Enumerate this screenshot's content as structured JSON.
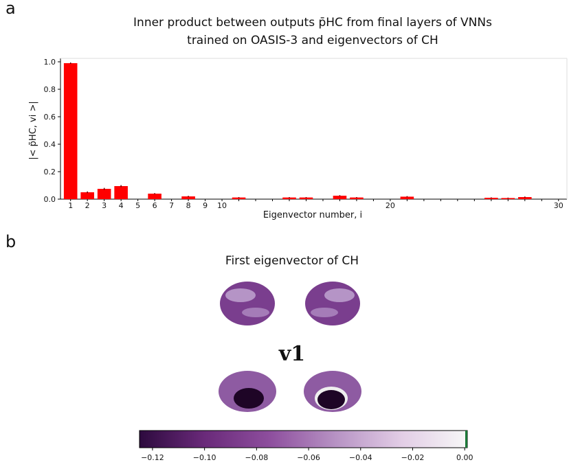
{
  "panels": [
    "a",
    "b"
  ],
  "chart_data": [
    {
      "type": "bar",
      "title": [
        "Inner product between outputs p̄HC from final layers of VNNs",
        "trained on OASIS-3 and eigenvectors of CH"
      ],
      "xlabel": "Eigenvector number, i",
      "ylabel": "|< p̄HC, vi >|",
      "x": [
        1,
        2,
        3,
        4,
        5,
        6,
        7,
        8,
        9,
        10,
        11,
        12,
        13,
        14,
        15,
        16,
        17,
        18,
        19,
        20,
        21,
        22,
        23,
        24,
        25,
        26,
        27,
        28,
        29,
        30
      ],
      "values": [
        0.99,
        0.05,
        0.075,
        0.095,
        0,
        0.04,
        0,
        0.02,
        0,
        0,
        0.012,
        0,
        0,
        0.012,
        0.012,
        0,
        0.025,
        0.012,
        0,
        0,
        0.018,
        0,
        0,
        0,
        0,
        0.01,
        0.008,
        0.015,
        0,
        0
      ],
      "errors": [
        0.005,
        0.006,
        0.007,
        0.007,
        0,
        0.004,
        0,
        0.004,
        0,
        0,
        0.003,
        0,
        0,
        0.003,
        0.003,
        0,
        0.004,
        0.003,
        0,
        0,
        0.004,
        0,
        0,
        0,
        0,
        0.003,
        0.003,
        0.004,
        0,
        0
      ],
      "color": "#ff0000",
      "xlim": [
        0.4,
        30.5
      ],
      "xticks": [
        1,
        2,
        3,
        4,
        5,
        6,
        7,
        8,
        9,
        10,
        20,
        30
      ],
      "ylim": [
        0,
        1.0
      ],
      "yticks": [
        {
          "value": 0,
          "label": "0.0"
        },
        0.2,
        0.4,
        0.6,
        0.8,
        {
          "value": 1,
          "label": "1.0"
        }
      ]
    },
    {
      "type": "colorbar",
      "title": "First eigenvector of CH",
      "label": "v1",
      "colors": [
        "#2d0a3e",
        "#6a2a7a",
        "#8e4f9e",
        "#b793c4",
        "#e2cde6",
        "#f7f7f7"
      ],
      "xlim": [
        -0.125,
        0.001
      ],
      "xticks": [
        {
          "value": -0.12,
          "label": "−0.12"
        },
        {
          "value": -0.1,
          "label": "−0.10"
        },
        {
          "value": -0.08,
          "label": "−0.08"
        },
        {
          "value": -0.06,
          "label": "−0.06"
        },
        {
          "value": -0.04,
          "label": "−0.04"
        },
        {
          "value": -0.02,
          "label": "−0.02"
        },
        {
          "value": 0,
          "label": "0.00"
        }
      ]
    }
  ]
}
